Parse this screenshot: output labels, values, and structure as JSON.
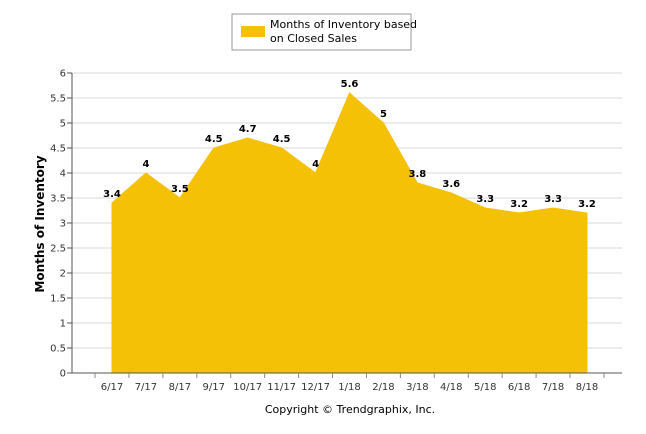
{
  "chart_data": {
    "type": "area",
    "categories": [
      "6/17",
      "7/17",
      "8/17",
      "9/17",
      "10/17",
      "11/17",
      "12/17",
      "1/18",
      "2/18",
      "3/18",
      "4/18",
      "5/18",
      "6/18",
      "7/18",
      "8/18"
    ],
    "series": [
      {
        "name": "Months of Inventory based on Closed Sales",
        "values": [
          3.4,
          4,
          3.5,
          4.5,
          4.7,
          4.5,
          4,
          5.6,
          5,
          3.8,
          3.6,
          3.3,
          3.2,
          3.3,
          3.2
        ],
        "labels": [
          "3.4",
          "4",
          "3.5",
          "4.5",
          "4.7",
          "4.5",
          "4",
          "5.6",
          "5",
          "3.8",
          "3.6",
          "3.3",
          "3.2",
          "3.3",
          "3.2"
        ],
        "color": "#F5C106"
      }
    ],
    "ylabel": "Months of Inventory",
    "ylim": [
      0,
      6
    ],
    "yticks": [
      "0",
      "0.5",
      "1",
      "1.5",
      "2",
      "2.5",
      "3",
      "3.5",
      "4",
      "4.5",
      "5",
      "5.5",
      "6"
    ],
    "grid": true,
    "legend_position": "top-center"
  },
  "legend": {
    "line1": "Months of Inventory based",
    "line2": "on Closed Sales"
  },
  "footer": {
    "copyright": "Copyright © Trendgraphix, Inc."
  }
}
